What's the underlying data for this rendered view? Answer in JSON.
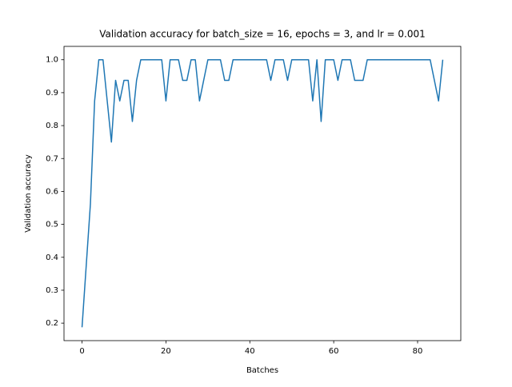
{
  "chart_data": {
    "type": "line",
    "title": "Validation accuracy for batch_size = 16, epochs = 3, and lr = 0.001",
    "x_label": "Batches",
    "y_label": "Validation accuracy",
    "x": [
      0,
      1,
      2,
      3,
      4,
      5,
      6,
      7,
      8,
      9,
      10,
      11,
      12,
      13,
      14,
      15,
      16,
      17,
      18,
      19,
      20,
      21,
      22,
      23,
      24,
      25,
      26,
      27,
      28,
      29,
      30,
      31,
      32,
      33,
      34,
      35,
      36,
      37,
      38,
      39,
      40,
      41,
      42,
      43,
      44,
      45,
      46,
      47,
      48,
      49,
      50,
      51,
      52,
      53,
      54,
      55,
      56,
      57,
      58,
      59,
      60,
      61,
      62,
      63,
      64,
      65,
      66,
      67,
      68,
      69,
      70,
      71,
      72,
      73,
      74,
      75,
      76,
      77,
      78,
      79,
      80,
      81,
      82,
      83,
      84,
      85,
      86
    ],
    "series": [
      {
        "color": "#1f77b4",
        "values": [
          0.1875,
          0.375,
          0.5625,
          0.875,
          1,
          1,
          0.875,
          0.75,
          0.9375,
          0.875,
          0.9375,
          0.9375,
          0.8125,
          0.9375,
          1,
          1,
          1,
          1,
          1,
          1,
          0.875,
          1,
          1,
          1,
          0.9375,
          0.9375,
          1,
          1,
          0.875,
          0.9375,
          1,
          1,
          1,
          1,
          0.9375,
          0.9375,
          1,
          1,
          1,
          1,
          1,
          1,
          1,
          1,
          1,
          0.9375,
          1,
          1,
          1,
          0.9375,
          1,
          1,
          1,
          1,
          1,
          0.875,
          1,
          0.8125,
          1,
          1,
          1,
          0.9375,
          1,
          1,
          1,
          0.9375,
          0.9375,
          0.9375,
          1,
          1,
          1,
          1,
          1,
          1,
          1,
          1,
          1,
          1,
          1,
          1,
          1,
          1,
          1,
          1,
          0.9375,
          0.875,
          1
        ]
      }
    ],
    "xlim": [
      -4.3,
      90.3
    ],
    "ylim": [
      0.146875,
      1.040625
    ],
    "xticks": [
      0,
      20,
      40,
      60,
      80
    ],
    "yticks": [
      0.2,
      0.3,
      0.4,
      0.5,
      0.6,
      0.7,
      0.8,
      0.9,
      {
        "value": 1,
        "label": "1.0"
      }
    ]
  }
}
